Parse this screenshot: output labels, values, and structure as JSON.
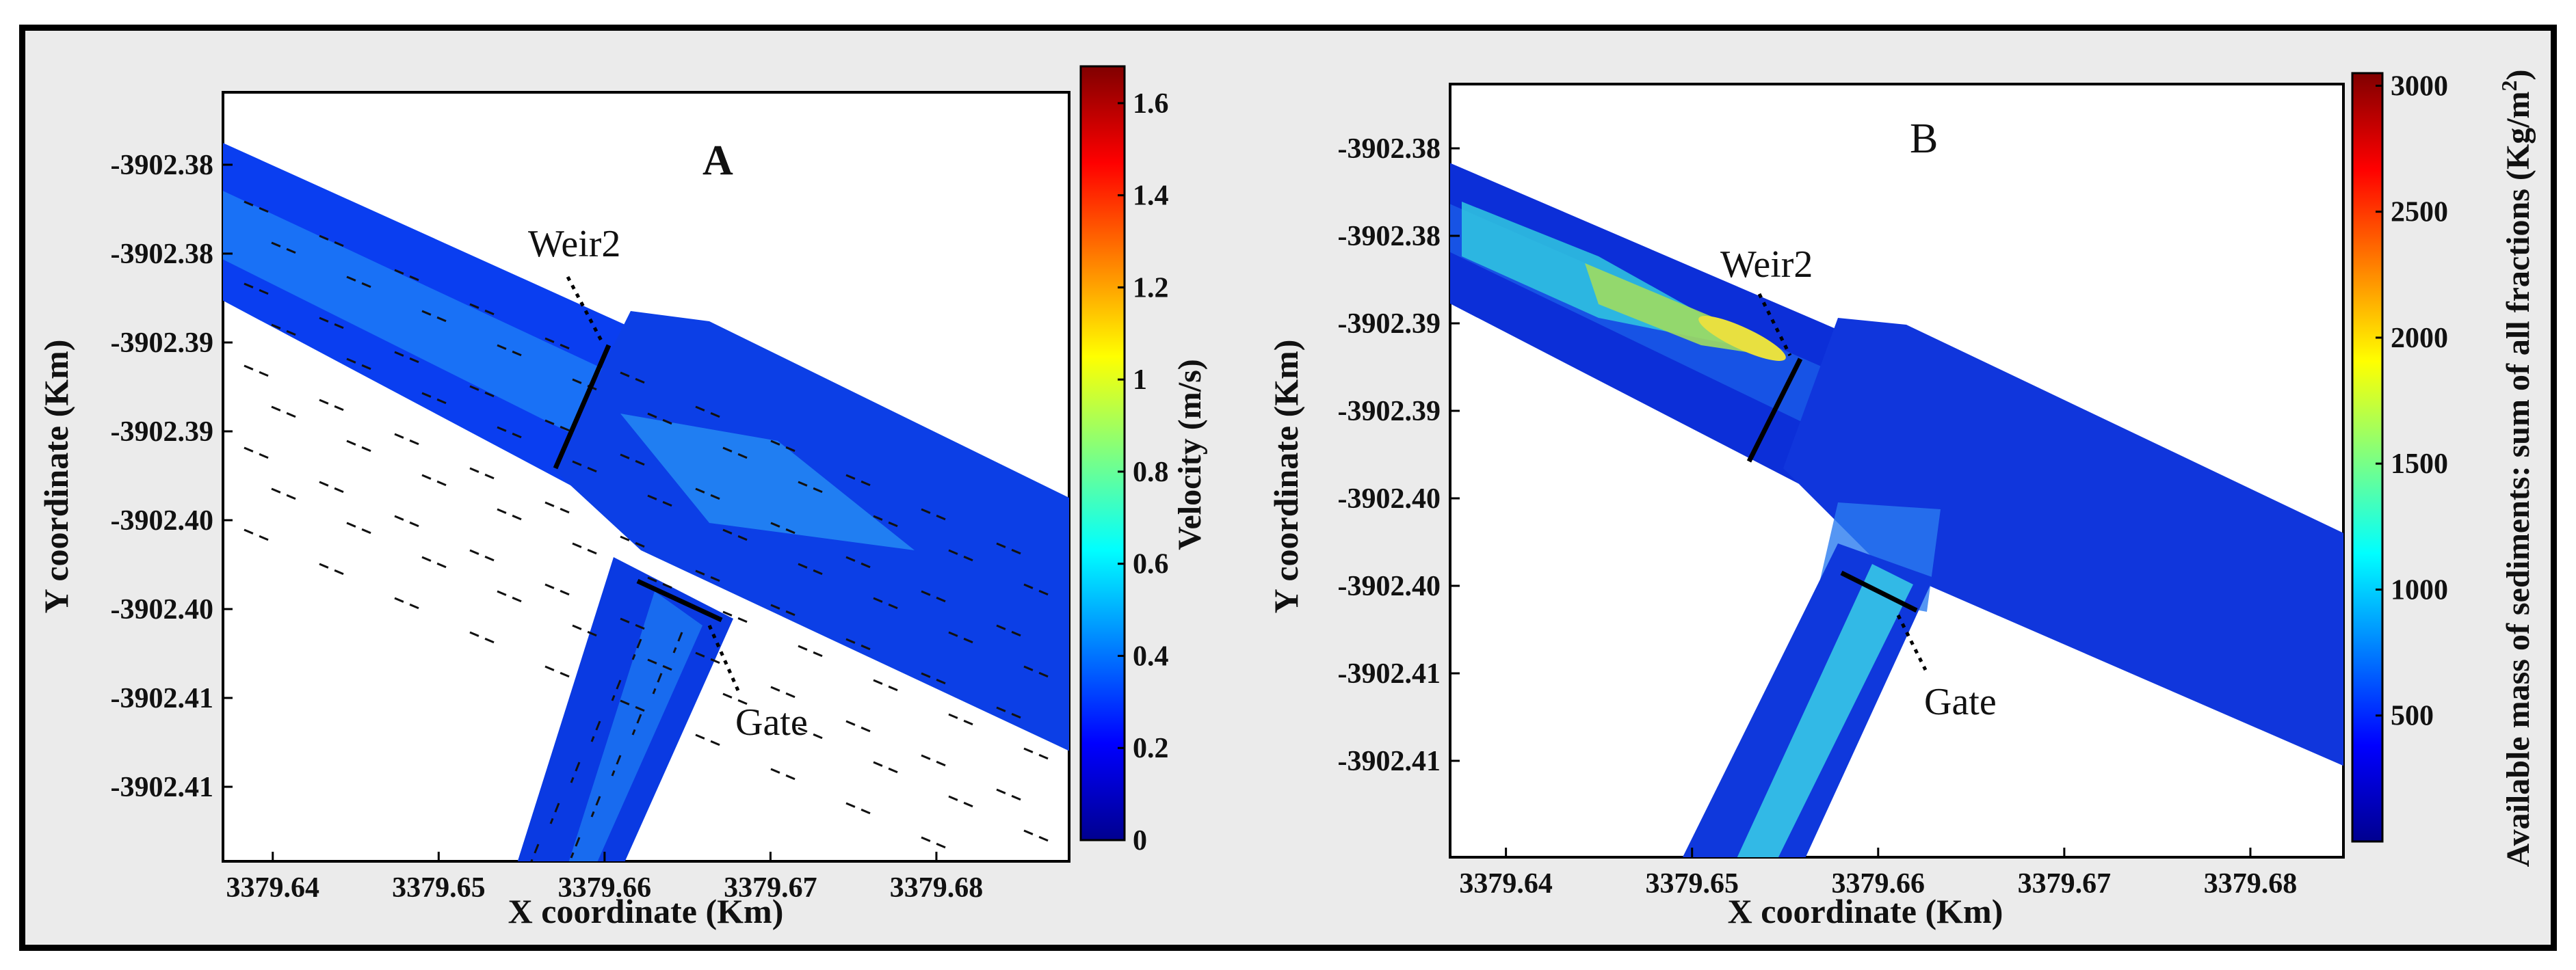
{
  "figure": {
    "panels": [
      {
        "id": "A",
        "panel_label": "A",
        "xlabel": "X coordinate (Km)",
        "ylabel": "Y coordinate (Km)",
        "xticks": [
          "3379.64",
          "3379.65",
          "3379.66",
          "3379.67",
          "3379.68"
        ],
        "yticks": [
          "-3902.38",
          "-3902.38",
          "-3902.39",
          "-3902.39",
          "-3902.40",
          "-3902.40",
          "-3902.41",
          "-3902.41"
        ],
        "colorbar_label": "Velocity (m/s)",
        "colorbar_ticks": [
          "0",
          "0.2",
          "0.4",
          "0.6",
          "0.8",
          "1",
          "1.2",
          "1.4",
          "1.6"
        ],
        "annotations": [
          "Weir2",
          "Gate"
        ]
      },
      {
        "id": "B",
        "panel_label": "B",
        "xlabel": "X coordinate (Km)",
        "ylabel": "Y coordinate (Km)",
        "xticks": [
          "3379.64",
          "3379.65",
          "3379.66",
          "3379.67",
          "3379.68"
        ],
        "yticks": [
          "-3902.38",
          "-3902.38",
          "-3902.39",
          "-3902.39",
          "-3902.40",
          "-3902.40",
          "-3902.41",
          "-3902.41"
        ],
        "colorbar_label": "Available mass of sediments: sum of all fractions (Kg/m",
        "colorbar_label_sup": "2",
        "colorbar_label_end": ")",
        "colorbar_ticks": [
          "500",
          "1000",
          "1500",
          "2000",
          "2500",
          "3000"
        ],
        "annotations": [
          "Weir2",
          "Gate"
        ]
      }
    ]
  },
  "chart_data": [
    {
      "type": "heatmap",
      "title": "",
      "panel_label": "A",
      "xlabel": "X coordinate (Km)",
      "ylabel": "Y coordinate (Km)",
      "xlim": [
        3379.637,
        3379.688
      ],
      "ticks_x": [
        3379.64,
        3379.65,
        3379.66,
        3379.67,
        3379.68
      ],
      "colorbar": {
        "label": "Velocity (m/s)",
        "range": [
          0,
          1.68
        ],
        "colormap": "jet",
        "ticks": [
          0,
          0.2,
          0.4,
          0.6,
          0.8,
          1,
          1.2,
          1.4,
          1.6
        ]
      },
      "annotations": [
        "Weir2",
        "Gate"
      ],
      "vectors": true
    },
    {
      "type": "heatmap",
      "title": "",
      "panel_label": "B",
      "xlabel": "X coordinate (Km)",
      "ylabel": "Y coordinate (Km)",
      "xlim": [
        3379.637,
        3379.685
      ],
      "ticks_x": [
        3379.64,
        3379.65,
        3379.66,
        3379.67,
        3379.68
      ],
      "colorbar": {
        "label": "Available mass of sediments: sum of all fractions (Kg/m2)",
        "range": [
          0,
          3050
        ],
        "colormap": "jet",
        "ticks": [
          500,
          1000,
          1500,
          2000,
          2500,
          3000
        ]
      },
      "annotations": [
        "Weir2",
        "Gate"
      ],
      "vectors": false
    }
  ]
}
